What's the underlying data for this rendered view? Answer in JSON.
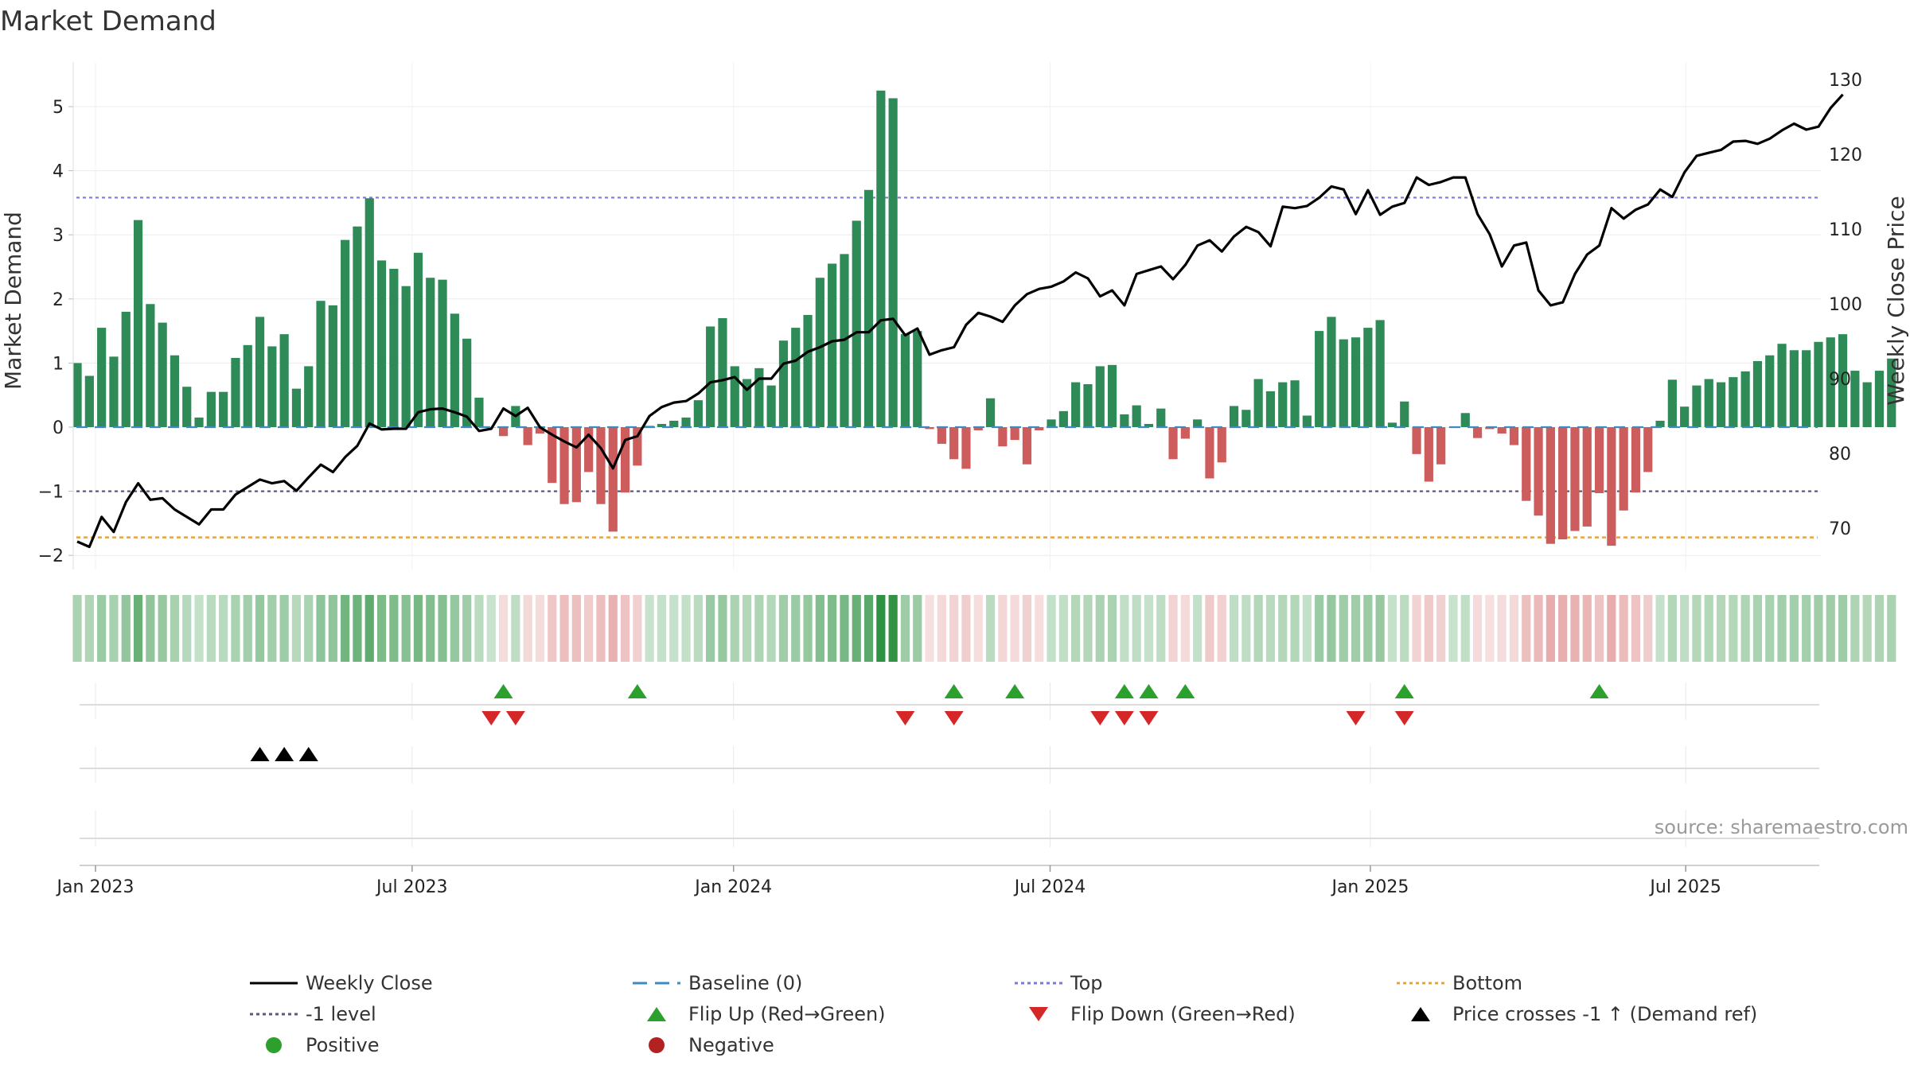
{
  "chart_data": {
    "type": "bar",
    "title": "Market Demand",
    "ylabel": "Market Demand",
    "y2label": "Weekly Close Price",
    "ylim": [
      -2.2,
      5.5
    ],
    "y2lim": [
      65,
      130
    ],
    "yticks": [
      "−2",
      "−1",
      "0",
      "1",
      "2",
      "3",
      "4",
      "5"
    ],
    "y2ticks": [
      "70",
      "80",
      "90",
      "100",
      "110",
      "120",
      "130"
    ],
    "x_ticks": [
      {
        "label": "Jan 2023",
        "week": 0
      },
      {
        "label": "Jul 2023",
        "week": 26
      },
      {
        "label": "Jan 2024",
        "week": 52.4
      },
      {
        "label": "Jul 2024",
        "week": 78.4
      },
      {
        "label": "Jan 2025",
        "week": 104.7
      },
      {
        "label": "Jul 2025",
        "week": 130.6
      }
    ],
    "reference_lines": {
      "top": 3.58,
      "bottom": -1.72,
      "level": -1,
      "baseline": 0
    },
    "source": "source: sharemaestro.com",
    "colors": {
      "positive": "#2e8b57",
      "negative": "#cd5c5c",
      "price": "#000000",
      "top": "#7b7bd8",
      "bottom": "#e6a43c",
      "level": "#5a5a7a",
      "baseline": "#3a8bc0",
      "flip_up": "#2ca02c",
      "flip_down": "#d62728",
      "cross": "#000000"
    },
    "first_bar_week": -1.5,
    "demand": [
      1.0,
      0.8,
      1.55,
      1.1,
      1.8,
      3.23,
      1.92,
      1.63,
      1.12,
      0.63,
      0.15,
      0.55,
      0.55,
      1.08,
      1.28,
      1.72,
      1.26,
      1.45,
      0.6,
      0.95,
      1.97,
      1.9,
      2.92,
      3.13,
      3.57,
      2.6,
      2.47,
      2.2,
      2.72,
      2.33,
      2.3,
      1.77,
      1.38,
      0.46,
      0.0,
      -0.14,
      0.33,
      -0.28,
      -0.1,
      -0.87,
      -1.2,
      -1.17,
      -0.7,
      -1.2,
      -1.63,
      -1.02,
      -0.6,
      0.02,
      0.05,
      0.1,
      0.15,
      0.42,
      1.57,
      1.7,
      0.95,
      0.75,
      0.92,
      0.65,
      1.35,
      1.55,
      1.75,
      2.33,
      2.55,
      2.7,
      3.22,
      3.7,
      5.25,
      5.13,
      1.45,
      1.5,
      -0.03,
      -0.26,
      -0.5,
      -0.65,
      -0.05,
      0.45,
      -0.3,
      -0.2,
      -0.58,
      -0.05,
      0.12,
      0.25,
      0.7,
      0.67,
      0.95,
      0.97,
      0.2,
      0.34,
      0.05,
      0.29,
      -0.5,
      -0.18,
      0.12,
      -0.8,
      -0.55,
      0.33,
      0.27,
      0.75,
      0.56,
      0.7,
      0.73,
      0.18,
      1.5,
      1.72,
      1.37,
      1.4,
      1.55,
      1.67,
      0.07,
      0.4,
      -0.42,
      -0.85,
      -0.58,
      0.0,
      0.22,
      -0.17,
      -0.03,
      -0.1,
      -0.28,
      -1.15,
      -1.38,
      -1.82,
      -1.75,
      -1.62,
      -1.55,
      -1.03,
      -1.85,
      -1.3,
      -1.02,
      -0.7,
      0.1,
      0.74,
      0.32,
      0.65,
      0.75,
      0.7,
      0.78,
      0.87,
      1.03,
      1.12,
      1.3,
      1.2,
      1.2,
      1.33,
      1.4,
      1.45,
      0.88,
      0.7,
      0.88,
      1.07
    ],
    "price": [
      [
        -1.5,
        68.2
      ],
      [
        -0.5,
        67.5
      ],
      [
        0.5,
        71.5
      ],
      [
        1.5,
        69.5
      ],
      [
        2.5,
        73.5
      ],
      [
        3.5,
        76.0
      ],
      [
        4.5,
        73.8
      ],
      [
        5.5,
        74.0
      ],
      [
        6.5,
        72.5
      ],
      [
        7.5,
        71.5
      ],
      [
        8.5,
        70.5
      ],
      [
        9.5,
        72.5
      ],
      [
        10.5,
        72.5
      ],
      [
        11.5,
        74.5
      ],
      [
        12.5,
        75.5
      ],
      [
        13.5,
        76.5
      ],
      [
        14.5,
        76.0
      ],
      [
        15.5,
        76.3
      ],
      [
        16.5,
        75.0
      ],
      [
        17.5,
        76.8
      ],
      [
        18.5,
        78.5
      ],
      [
        19.5,
        77.5
      ],
      [
        20.5,
        79.5
      ],
      [
        21.5,
        81.0
      ],
      [
        22.5,
        84.0
      ],
      [
        23.5,
        83.2
      ],
      [
        24.5,
        83.3
      ],
      [
        25.5,
        83.3
      ],
      [
        26.5,
        85.5
      ],
      [
        27.5,
        85.9
      ],
      [
        28.5,
        86.0
      ],
      [
        29.5,
        85.5
      ],
      [
        30.5,
        84.9
      ],
      [
        31.5,
        83.0
      ],
      [
        32.5,
        83.3
      ],
      [
        33.5,
        86.0
      ],
      [
        34.5,
        85.0
      ],
      [
        35.5,
        86.1
      ],
      [
        36.5,
        83.5
      ],
      [
        37.5,
        82.5
      ],
      [
        38.5,
        81.6
      ],
      [
        39.5,
        80.8
      ],
      [
        40.5,
        82.5
      ],
      [
        41.5,
        80.7
      ],
      [
        42.5,
        78.0
      ],
      [
        43.5,
        81.8
      ],
      [
        44.5,
        82.3
      ],
      [
        45.5,
        85.0
      ],
      [
        46.5,
        86.2
      ],
      [
        47.5,
        86.8
      ],
      [
        48.5,
        87.0
      ],
      [
        49.5,
        88.0
      ],
      [
        50.5,
        89.5
      ],
      [
        51.5,
        89.8
      ],
      [
        52.5,
        90.2
      ],
      [
        53.5,
        88.5
      ],
      [
        54.5,
        90.0
      ],
      [
        55.5,
        90.0
      ],
      [
        56.5,
        92.0
      ],
      [
        57.5,
        92.4
      ],
      [
        58.5,
        93.6
      ],
      [
        59.5,
        94.2
      ],
      [
        60.5,
        95.0
      ],
      [
        61.5,
        95.2
      ],
      [
        62.5,
        96.2
      ],
      [
        63.5,
        96.2
      ],
      [
        64.5,
        97.8
      ],
      [
        65.5,
        98.0
      ],
      [
        66.5,
        95.8
      ],
      [
        67.5,
        96.7
      ],
      [
        68.5,
        93.2
      ],
      [
        69.5,
        93.8
      ],
      [
        70.5,
        94.2
      ],
      [
        71.5,
        97.2
      ],
      [
        72.5,
        98.8
      ],
      [
        73.5,
        98.3
      ],
      [
        74.5,
        97.6
      ],
      [
        75.5,
        99.8
      ],
      [
        76.5,
        101.3
      ],
      [
        77.5,
        102.0
      ],
      [
        78.5,
        102.3
      ],
      [
        79.5,
        103.0
      ],
      [
        80.5,
        104.2
      ],
      [
        81.5,
        103.4
      ],
      [
        82.5,
        101.0
      ],
      [
        83.5,
        101.8
      ],
      [
        84.5,
        99.8
      ],
      [
        85.5,
        104.0
      ],
      [
        86.5,
        104.5
      ],
      [
        87.5,
        105.0
      ],
      [
        88.5,
        103.3
      ],
      [
        89.5,
        105.2
      ],
      [
        90.5,
        107.8
      ],
      [
        91.5,
        108.5
      ],
      [
        92.5,
        107.0
      ],
      [
        93.5,
        109.0
      ],
      [
        94.5,
        110.3
      ],
      [
        95.5,
        109.6
      ],
      [
        96.5,
        107.7
      ],
      [
        97.5,
        113.0
      ],
      [
        98.5,
        112.8
      ],
      [
        99.5,
        113.1
      ],
      [
        100.5,
        114.2
      ],
      [
        101.5,
        115.7
      ],
      [
        102.5,
        115.3
      ],
      [
        103.5,
        112.0
      ],
      [
        104.5,
        115.2
      ],
      [
        105.5,
        111.9
      ],
      [
        106.5,
        113.0
      ],
      [
        107.5,
        113.5
      ],
      [
        108.5,
        116.9
      ],
      [
        109.5,
        115.9
      ],
      [
        110.5,
        116.3
      ],
      [
        111.5,
        116.9
      ],
      [
        112.5,
        116.9
      ],
      [
        113.5,
        112.0
      ],
      [
        114.5,
        109.3
      ],
      [
        115.5,
        105.0
      ],
      [
        116.5,
        107.8
      ],
      [
        117.5,
        108.2
      ],
      [
        118.5,
        101.8
      ],
      [
        119.5,
        99.8
      ],
      [
        120.5,
        100.2
      ],
      [
        121.5,
        104.0
      ],
      [
        122.5,
        106.6
      ],
      [
        123.5,
        107.8
      ],
      [
        124.5,
        112.8
      ],
      [
        125.5,
        111.4
      ],
      [
        126.5,
        112.6
      ],
      [
        127.5,
        113.3
      ],
      [
        128.5,
        115.3
      ],
      [
        129.5,
        114.3
      ],
      [
        130.5,
        117.6
      ],
      [
        131.5,
        119.8
      ],
      [
        132.5,
        120.2
      ],
      [
        133.5,
        120.6
      ],
      [
        134.5,
        121.7
      ],
      [
        135.5,
        121.8
      ],
      [
        136.5,
        121.4
      ],
      [
        137.5,
        122.1
      ],
      [
        138.5,
        123.2
      ],
      [
        139.5,
        124.1
      ],
      [
        140.5,
        123.3
      ],
      [
        141.5,
        123.7
      ],
      [
        142.5,
        126.2
      ],
      [
        143.5,
        128.0
      ]
    ],
    "flip_up_weeks": [
      33.5,
      44.5,
      70.5,
      75.5,
      84.5,
      86.5,
      89.5,
      107.5,
      123.5
    ],
    "flip_down_weeks": [
      32.5,
      34.5,
      66.5,
      70.5,
      82.5,
      84.5,
      86.5,
      103.5,
      107.5
    ],
    "price_cross_weeks": [
      13.5,
      15.5,
      17.5
    ],
    "legend": [
      {
        "label": "Weekly Close",
        "symbol": "solid-line",
        "color": "#000000"
      },
      {
        "label": "Baseline (0)",
        "symbol": "dash-line",
        "color": "#3a8bc0"
      },
      {
        "label": "Top",
        "symbol": "dot-line",
        "color": "#7b7bd8"
      },
      {
        "label": "Bottom",
        "symbol": "dot-line",
        "color": "#e6a43c"
      },
      {
        "label": "-1 level",
        "symbol": "dot-line",
        "color": "#5a5a7a"
      },
      {
        "label": "Flip Up (Red→Green)",
        "symbol": "triangle-up",
        "color": "#2ca02c"
      },
      {
        "label": "Flip Down (Green→Red)",
        "symbol": "triangle-down",
        "color": "#d62728"
      },
      {
        "label": "Price crosses -1 ↑ (Demand ref)",
        "symbol": "triangle-up",
        "color": "#000000"
      },
      {
        "label": "Positive",
        "symbol": "circle",
        "color": "#2ca02c"
      },
      {
        "label": "Negative",
        "symbol": "circle",
        "color": "#b22222"
      }
    ]
  }
}
